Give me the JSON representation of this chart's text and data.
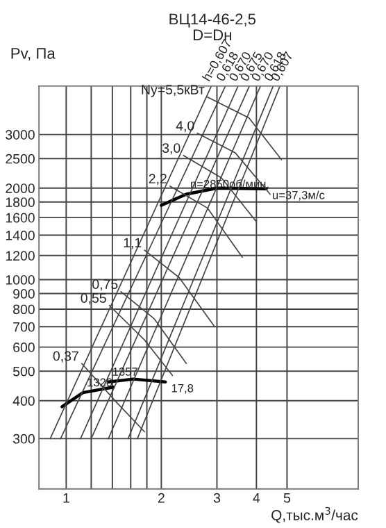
{
  "chart_data": {
    "type": "line",
    "title": "ВЦ14-46-2,5",
    "subtitle": "D=Dн",
    "xlabel": "Q,тыс.м$^{3}$/час",
    "ylabel": "Pv, Па",
    "log": "xy",
    "grid": true,
    "legend": false,
    "xlim": [
      0.82,
      8.4
    ],
    "ylim": [
      205,
      4330
    ],
    "xticks": [
      1,
      {
        "value": 1.2,
        "label": null
      },
      {
        "value": 1.4,
        "label": null
      },
      {
        "value": 1.6,
        "label": null
      },
      {
        "value": 1.8,
        "label": null
      },
      2,
      3,
      4,
      5
    ],
    "yticks": [
      300,
      400,
      500,
      600,
      700,
      800,
      900,
      1000,
      1200,
      1400,
      1600,
      1800,
      2000,
      2500,
      3000
    ],
    "series": [
      {
        "color": "#000000",
        "x": [
          2.0,
          2.4,
          3.0,
          4.3
        ],
        "values": [
          1755,
          1910,
          2000,
          1990
        ]
      },
      {
        "color": "#000000",
        "x": [
          0.97,
          1.13,
          1.41
        ],
        "values": [
          382,
          425,
          443
        ]
      },
      {
        "color": "#000000",
        "x": [
          1.36,
          1.63,
          2.06
        ],
        "values": [
          461,
          471,
          461
        ]
      },
      {
        "name": "h=0,607",
        "color": "#444444",
        "x": [
          0.89,
          2.88
        ],
        "values": [
          300,
          4330
        ]
      },
      {
        "name": "0,618",
        "color": "#444444",
        "x": [
          0.96,
          3.19
        ],
        "values": [
          300,
          4330
        ]
      },
      {
        "name": "0,670",
        "color": "#444444",
        "x": [
          1.11,
          3.5
        ],
        "values": [
          300,
          4330
        ]
      },
      {
        "name": "0,675",
        "color": "#444444",
        "x": [
          1.2,
          3.8
        ],
        "values": [
          300,
          4330
        ]
      },
      {
        "name": "0,670",
        "color": "#444444",
        "x": [
          1.36,
          4.12
        ],
        "values": [
          300,
          4330
        ]
      },
      {
        "name": "0,618",
        "color": "#444444",
        "x": [
          1.57,
          4.52
        ],
        "values": [
          300,
          4330
        ]
      },
      {
        "name": "0,607",
        "color": "#444444",
        "x": [
          1.68,
          4.75
        ],
        "values": [
          300,
          4330
        ]
      },
      {
        "name": "Ny=5,5кВт",
        "color": "#444444",
        "x": [
          2.8,
          3.79,
          4.8
        ],
        "values": [
          3985,
          3400,
          2480
        ]
      },
      {
        "name": "4,0",
        "color": "#444444",
        "x": [
          2.6,
          3.43,
          4.42
        ],
        "values": [
          3030,
          2610,
          1909
        ]
      },
      {
        "name": "3,0",
        "color": "#444444",
        "x": [
          2.35,
          3.1,
          4.0
        ],
        "values": [
          2560,
          2160,
          1550
        ]
      },
      {
        "name": "2,2",
        "color": "#444444",
        "x": [
          2.13,
          2.8,
          3.61
        ],
        "values": [
          2030,
          1720,
          1185
        ]
      },
      {
        "name": "1,1",
        "color": "#444444",
        "x": [
          1.77,
          2.28,
          2.95
        ],
        "values": [
          1250,
          1015,
          700
        ]
      },
      {
        "name": "0,75",
        "color": "#444444",
        "x": [
          1.49,
          1.9,
          2.4
        ],
        "values": [
          913,
          743,
          530
        ]
      },
      {
        "name": "0,55",
        "color": "#444444",
        "x": [
          1.37,
          1.77,
          2.17
        ],
        "values": [
          822,
          633,
          484
        ]
      },
      {
        "name": "0,37",
        "color": "#444444",
        "x": [
          1.12,
          1.44,
          1.77
        ],
        "values": [
          530,
          396,
          316
        ]
      }
    ],
    "annotations": [
      {
        "text": "n=2850об/мин.",
        "x": 2.4,
        "y": 1910
      },
      {
        "text": "u=37,3м/с",
        "x": 4.3,
        "y": 1990
      },
      {
        "text": "1320",
        "x": 1.13,
        "y": 425
      },
      {
        "text": "1357",
        "x": 1.36,
        "y": 461
      },
      {
        "text": "17,8",
        "x": 2.06,
        "y": 461
      }
    ]
  }
}
